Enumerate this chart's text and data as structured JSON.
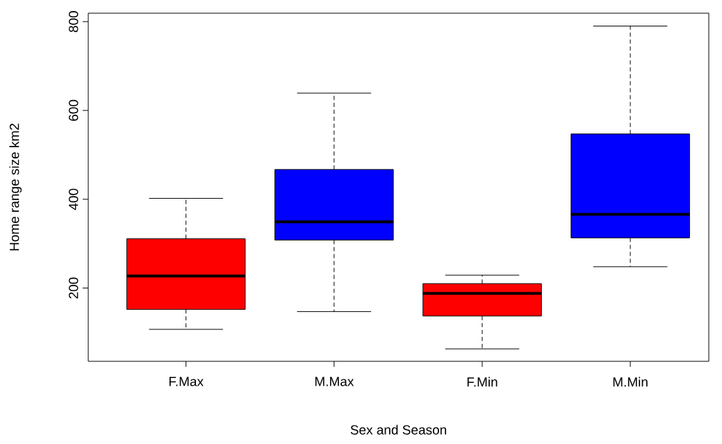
{
  "chart_data": {
    "type": "box",
    "xlabel": "Sex and Season",
    "ylabel": "Home range size km2",
    "categories": [
      "F.Max",
      "M.Max",
      "F.Min",
      "M.Min"
    ],
    "colors": [
      "#ff0000",
      "#0000ff",
      "#ff0000",
      "#0000ff"
    ],
    "boxes": [
      {
        "low": 107,
        "q1": 152,
        "median": 227,
        "q3": 311,
        "high": 402
      },
      {
        "low": 147,
        "q1": 308,
        "median": 349,
        "q3": 467,
        "high": 639
      },
      {
        "low": 63,
        "q1": 137,
        "median": 188,
        "q3": 210,
        "high": 229
      },
      {
        "low": 248,
        "q1": 313,
        "median": 366,
        "q3": 547,
        "high": 790
      }
    ],
    "ylim": [
      35,
      819
    ],
    "yticks": [
      200,
      400,
      600,
      800
    ],
    "grid": false
  }
}
